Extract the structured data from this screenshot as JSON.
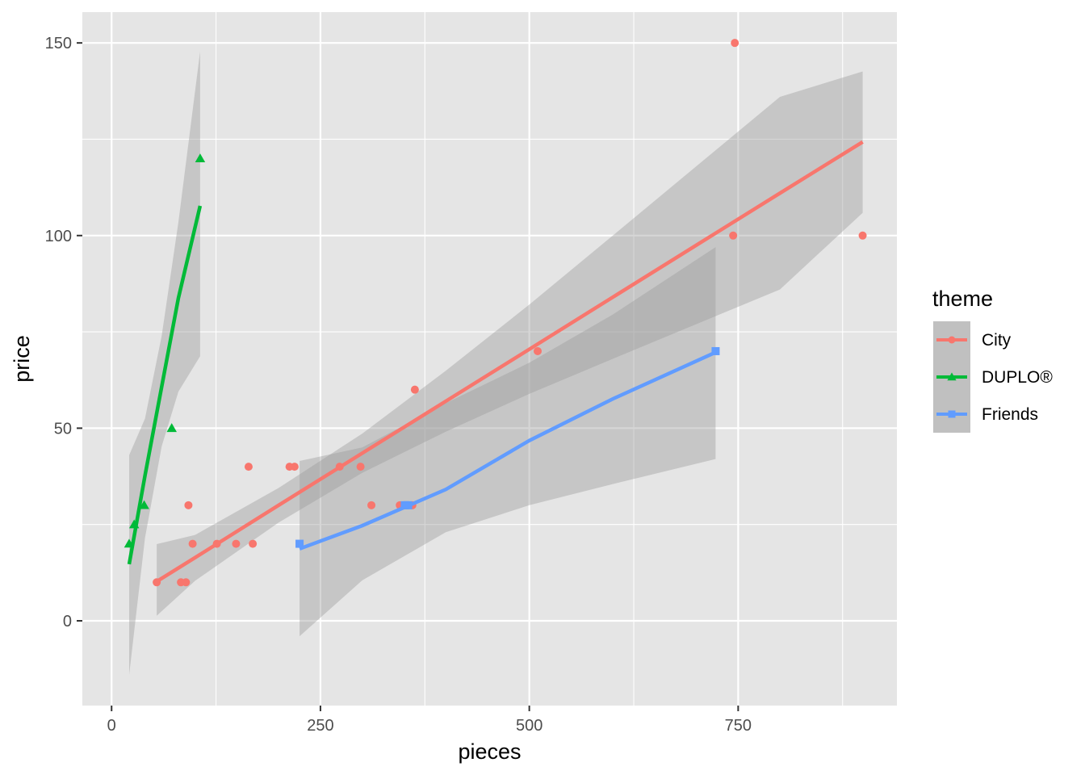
{
  "chart_data": {
    "type": "scatter",
    "title": "",
    "xlabel": "pieces",
    "ylabel": "price",
    "xlim": [
      -35,
      940
    ],
    "ylim": [
      -22,
      158
    ],
    "xticks": [
      0,
      250,
      500,
      750
    ],
    "xtick_labels": [
      "0",
      "250",
      "500",
      "750"
    ],
    "yticks": [
      0,
      50,
      100,
      150
    ],
    "ytick_labels": [
      "0",
      "50",
      "100",
      "150"
    ],
    "grid": true,
    "background": "#e5e5e5",
    "legend": {
      "title": "theme",
      "position": "right"
    },
    "series": [
      {
        "name": "City",
        "color": "#f8766d",
        "marker": "circle",
        "points": [
          [
            54,
            10
          ],
          [
            83,
            10
          ],
          [
            89,
            10
          ],
          [
            92,
            30
          ],
          [
            97,
            20
          ],
          [
            126,
            20
          ],
          [
            149,
            20
          ],
          [
            164,
            40
          ],
          [
            169,
            20
          ],
          [
            213,
            40
          ],
          [
            219,
            40
          ],
          [
            273,
            40
          ],
          [
            298,
            40
          ],
          [
            311,
            30
          ],
          [
            345,
            30
          ],
          [
            350,
            30
          ],
          [
            360,
            30
          ],
          [
            363,
            60
          ],
          [
            510,
            70
          ],
          [
            744,
            100
          ],
          [
            746,
            150
          ],
          [
            899,
            100
          ]
        ],
        "fit": {
          "x": [
            54,
            100,
            200,
            300,
            400,
            500,
            600,
            700,
            800,
            899
          ],
          "y": [
            10.2,
            16.4,
            30.0,
            43.5,
            57.0,
            70.5,
            84.0,
            97.5,
            111.0,
            124.3
          ],
          "lower": [
            1.3,
            10.4,
            25.5,
            38.4,
            49.1,
            58.9,
            68.0,
            77.0,
            86.0,
            105.9
          ],
          "upper": [
            19.9,
            22.3,
            34.5,
            48.6,
            64.9,
            82.1,
            100.0,
            118.0,
            136.0,
            142.6
          ]
        }
      },
      {
        "name": "DUPLO®",
        "color": "#00ba38",
        "marker": "triangle",
        "points": [
          [
            21,
            20
          ],
          [
            27,
            25
          ],
          [
            39,
            30
          ],
          [
            72,
            50
          ],
          [
            106,
            120
          ]
        ],
        "fit": {
          "x": [
            21,
            40,
            60,
            80,
            106
          ],
          "y": [
            14.7,
            37.7,
            60.8,
            83.8,
            107.7
          ],
          "lower": [
            -14,
            21.5,
            45.3,
            59.5,
            68.7
          ],
          "upper": [
            43,
            52.5,
            74.0,
            103.5,
            147.8
          ]
        }
      },
      {
        "name": "Friends",
        "color": "#619cff",
        "marker": "square",
        "points": [
          [
            225,
            20
          ],
          [
            351,
            30
          ],
          [
            355,
            30
          ],
          [
            723,
            70
          ]
        ],
        "fit": {
          "x": [
            225,
            300,
            400,
            500,
            600,
            723
          ],
          "y": [
            18.7,
            24.7,
            34.1,
            46.8,
            57.6,
            69.7
          ],
          "lower": [
            -4,
            10.5,
            23.0,
            30.0,
            35.5,
            42.0
          ],
          "upper": [
            41.5,
            45.0,
            56.5,
            67.0,
            79.5,
            97.0
          ]
        }
      }
    ]
  }
}
